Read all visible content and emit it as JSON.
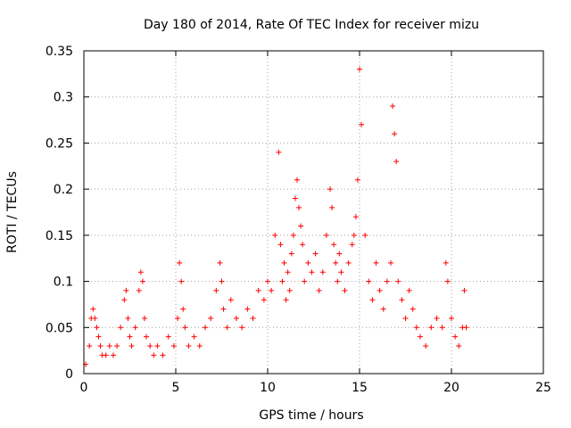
{
  "chart_data": {
    "type": "scatter",
    "title": "Day 180 of 2014, Rate Of TEC Index for receiver mizu",
    "xlabel": "GPS time / hours",
    "ylabel": "ROTI / TECUs",
    "xlim": [
      0,
      25
    ],
    "ylim": [
      0,
      0.35
    ],
    "x_ticks": [
      0,
      5,
      10,
      15,
      20,
      25
    ],
    "x_tick_labels": [
      "0",
      "5",
      "10",
      "15",
      "20",
      "25"
    ],
    "y_ticks": [
      0,
      0.05,
      0.1,
      0.15,
      0.2,
      0.25,
      0.3,
      0.35
    ],
    "y_tick_labels": [
      "0",
      "0.05",
      "0.1",
      "0.15",
      "0.2",
      "0.25",
      "0.3",
      "0.35"
    ],
    "grid": true,
    "marker": "+",
    "color": "#ff0000",
    "series": [
      {
        "name": "ROTI",
        "x": [
          0.1,
          0.3,
          0.4,
          0.5,
          0.6,
          0.7,
          0.8,
          0.9,
          1.0,
          1.2,
          1.4,
          1.6,
          1.8,
          2.0,
          2.2,
          2.3,
          2.4,
          2.5,
          2.6,
          2.8,
          3.0,
          3.1,
          3.2,
          3.3,
          3.4,
          3.6,
          3.8,
          4.0,
          4.3,
          4.6,
          4.9,
          5.1,
          5.2,
          5.3,
          5.4,
          5.5,
          5.7,
          6.0,
          6.3,
          6.6,
          6.9,
          7.2,
          7.4,
          7.5,
          7.6,
          7.8,
          8.0,
          8.3,
          8.6,
          8.9,
          9.2,
          9.5,
          9.8,
          10.0,
          10.2,
          10.4,
          10.6,
          10.7,
          10.8,
          10.9,
          11.0,
          11.1,
          11.2,
          11.3,
          11.4,
          11.5,
          11.6,
          11.7,
          11.8,
          11.9,
          12.0,
          12.2,
          12.4,
          12.6,
          12.8,
          13.0,
          13.2,
          13.4,
          13.5,
          13.6,
          13.7,
          13.8,
          13.9,
          14.0,
          14.2,
          14.4,
          14.6,
          14.7,
          14.8,
          14.9,
          15.0,
          15.1,
          15.3,
          15.5,
          15.7,
          15.9,
          16.1,
          16.3,
          16.5,
          16.7,
          16.8,
          16.9,
          17.0,
          17.1,
          17.3,
          17.5,
          17.7,
          17.9,
          18.1,
          18.3,
          18.6,
          18.9,
          19.2,
          19.5,
          19.7,
          19.8,
          20.0,
          20.2,
          20.4,
          20.6,
          20.7,
          20.8
        ],
        "y": [
          0.01,
          0.03,
          0.06,
          0.07,
          0.06,
          0.05,
          0.04,
          0.03,
          0.02,
          0.02,
          0.03,
          0.02,
          0.03,
          0.05,
          0.08,
          0.09,
          0.06,
          0.04,
          0.03,
          0.05,
          0.09,
          0.11,
          0.1,
          0.06,
          0.04,
          0.03,
          0.02,
          0.03,
          0.02,
          0.04,
          0.03,
          0.06,
          0.12,
          0.1,
          0.07,
          0.05,
          0.03,
          0.04,
          0.03,
          0.05,
          0.06,
          0.09,
          0.12,
          0.1,
          0.07,
          0.05,
          0.08,
          0.06,
          0.05,
          0.07,
          0.06,
          0.09,
          0.08,
          0.1,
          0.09,
          0.15,
          0.24,
          0.14,
          0.1,
          0.12,
          0.08,
          0.11,
          0.09,
          0.13,
          0.15,
          0.19,
          0.21,
          0.18,
          0.16,
          0.14,
          0.1,
          0.12,
          0.11,
          0.13,
          0.09,
          0.11,
          0.15,
          0.2,
          0.18,
          0.14,
          0.12,
          0.1,
          0.13,
          0.11,
          0.09,
          0.12,
          0.14,
          0.15,
          0.17,
          0.21,
          0.33,
          0.27,
          0.15,
          0.1,
          0.08,
          0.12,
          0.09,
          0.07,
          0.1,
          0.12,
          0.29,
          0.26,
          0.23,
          0.1,
          0.08,
          0.06,
          0.09,
          0.07,
          0.05,
          0.04,
          0.03,
          0.05,
          0.06,
          0.05,
          0.12,
          0.1,
          0.06,
          0.04,
          0.03,
          0.05,
          0.09,
          0.05
        ]
      }
    ]
  }
}
